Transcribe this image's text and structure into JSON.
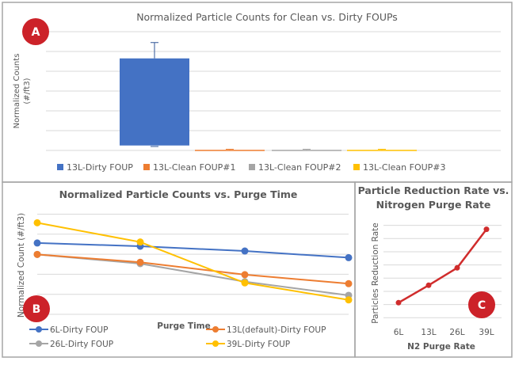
{
  "chart_data": [
    {
      "panel_label": "A",
      "type": "bar",
      "title": "Normalized Particle Counts for Clean vs. Dirty FOUPs",
      "xlabel": "",
      "ylabel": "Normalized Counts (#/ft3)",
      "ylabel_lines": [
        "Normalized Counts",
        "(#/ft3)"
      ],
      "ylim": [
        0,
        6
      ],
      "grid": true,
      "legend_position": "bottom",
      "series": [
        {
          "name": "13L-Dirty FOUP",
          "color": "#4472c4",
          "low": 0.25,
          "high": 4.65,
          "err_low": 0.2,
          "err_high": 5.45
        },
        {
          "name": "13L-Clean FOUP#1",
          "color": "#ed7d31",
          "low": 0.0,
          "high": 0.03,
          "err_low": 0.0,
          "err_high": 0.06
        },
        {
          "name": "13L-Clean FOUP#2",
          "color": "#a5a5a5",
          "low": 0.0,
          "high": 0.03,
          "err_low": 0.0,
          "err_high": 0.06
        },
        {
          "name": "13L-Clean FOUP#3",
          "color": "#ffc000",
          "low": 0.0,
          "high": 0.03,
          "err_low": 0.0,
          "err_high": 0.06
        }
      ]
    },
    {
      "panel_label": "B",
      "type": "line",
      "title": "Normalized Particle Counts vs. Purge Time",
      "xlabel": "Purge Time",
      "ylabel": "Normalized Count (#/ft3)",
      "x": [
        1,
        2,
        3,
        4
      ],
      "ylim": [
        0,
        5
      ],
      "grid": true,
      "legend_position": "bottom",
      "series": [
        {
          "name": "6L-Dirty FOUP",
          "color": "#4472c4",
          "values": [
            3.56,
            3.4,
            3.16,
            2.83
          ]
        },
        {
          "name": "13L(default)-Dirty FOUP",
          "color": "#ed7d31",
          "values": [
            2.99,
            2.6,
            1.98,
            1.53
          ]
        },
        {
          "name": "26L-Dirty FOUP",
          "color": "#a5a5a5",
          "values": [
            2.99,
            2.53,
            1.63,
            0.95
          ]
        },
        {
          "name": "39L-Dirty FOUP",
          "color": "#ffc000",
          "values": [
            4.57,
            3.61,
            1.57,
            0.72
          ]
        }
      ]
    },
    {
      "panel_label": "C",
      "type": "line",
      "title": "Particle Reduction Rate vs. Nitrogen Purge Rate",
      "title_lines": [
        "Particle Reduction Rate vs.",
        "Nitrogen Purge Rate"
      ],
      "xlabel": "N2 Purge Rate",
      "ylabel": "Particles Reduction Rate",
      "categories": [
        "6L",
        "13L",
        "26L",
        "39L"
      ],
      "ylim": [
        0,
        7
      ],
      "grid": true,
      "series": [
        {
          "name": "Particles Reduction Rate",
          "color": "#d02c2c",
          "values": [
            1.14,
            2.46,
            3.78,
            6.7
          ]
        }
      ]
    }
  ],
  "colors": {
    "badge": "#cc2229",
    "border": "#a6a6a6",
    "grid": "#d9d9d9",
    "text": "#595959"
  }
}
